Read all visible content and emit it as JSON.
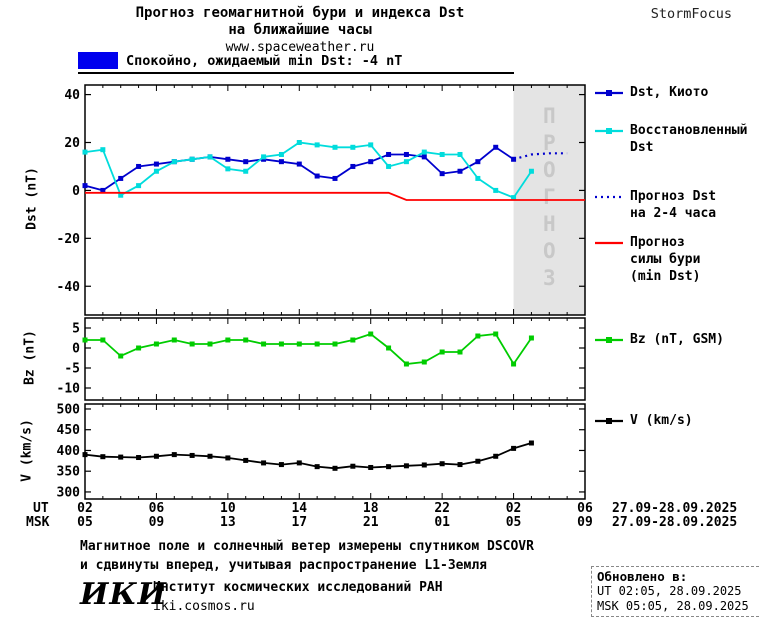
{
  "header": {
    "title_line1": "Прогноз геомагнитной бури и индекса Dst",
    "title_line2": "на ближайшие часы",
    "title_line3": "www.spaceweather.ru",
    "brand": "StormFocus"
  },
  "status_banner": {
    "label": "Спокойно, ожидаемый min Dst: -4 nT",
    "swatch_color": "#0000ee"
  },
  "chart_data": [
    {
      "type": "line",
      "ylabel": "Dst (nT)",
      "ylim": [
        -52,
        44
      ],
      "yticks": [
        40,
        20,
        0,
        -20,
        -40
      ],
      "xlim": [
        2,
        30
      ],
      "tick_hours": [
        2,
        6,
        10,
        14,
        18,
        22,
        26,
        30
      ],
      "forecast_band": {
        "from": 26,
        "to": 30,
        "label": "ПРОГНОЗ",
        "fill": "#e4e4e4",
        "label_color": "#c8c8c8"
      },
      "series": [
        {
          "name": "Dst, Киото",
          "color": "#0000cd",
          "marker": "square",
          "style": "solid",
          "x": [
            2,
            3,
            4,
            5,
            6,
            7,
            8,
            9,
            10,
            11,
            12,
            13,
            14,
            15,
            16,
            17,
            18,
            19,
            20,
            21,
            22,
            23,
            24,
            25,
            26
          ],
          "values": [
            2,
            0,
            5,
            10,
            11,
            12,
            13,
            14,
            13,
            12,
            13,
            12,
            11,
            6,
            5,
            10,
            12,
            15,
            15,
            14,
            7,
            8,
            12,
            18,
            13
          ]
        },
        {
          "name": "Восстановленный Dst",
          "color": "#00dcdc",
          "marker": "square",
          "style": "solid",
          "x": [
            2,
            3,
            4,
            5,
            6,
            7,
            8,
            9,
            10,
            11,
            12,
            13,
            14,
            15,
            16,
            17,
            18,
            19,
            20,
            21,
            22,
            23,
            24,
            25,
            26,
            27
          ],
          "values": [
            16,
            17,
            -2,
            2,
            8,
            12,
            13,
            14,
            9,
            8,
            14,
            15,
            20,
            19,
            18,
            18,
            19,
            10,
            12,
            16,
            15,
            15,
            5,
            0,
            -3,
            8
          ]
        },
        {
          "name": "Прогноз Dst на 2-4 часа",
          "color": "#0000cd",
          "marker": "none",
          "style": "dotted",
          "x": [
            26,
            27,
            28,
            29
          ],
          "values": [
            13,
            15,
            15.5,
            15.5
          ]
        },
        {
          "name": "Прогноз силы бури (min Dst)",
          "color": "#ff0000",
          "marker": "none",
          "style": "solid",
          "x": [
            2,
            19,
            20,
            30
          ],
          "values": [
            -1,
            -1,
            -4,
            -4
          ]
        }
      ]
    },
    {
      "type": "line",
      "ylabel": "Bz (nT)",
      "ylim": [
        -13,
        7.5
      ],
      "yticks": [
        5,
        0,
        -5,
        -10
      ],
      "xlim": [
        2,
        30
      ],
      "tick_hours": [
        2,
        6,
        10,
        14,
        18,
        22,
        26,
        30
      ],
      "series": [
        {
          "name": "Bz (nT, GSM)",
          "color": "#00cc00",
          "marker": "square",
          "style": "solid",
          "x": [
            2,
            3,
            4,
            5,
            6,
            7,
            8,
            9,
            10,
            11,
            12,
            13,
            14,
            15,
            16,
            17,
            18,
            19,
            20,
            21,
            22,
            23,
            24,
            25,
            26,
            27
          ],
          "values": [
            2,
            2,
            -2,
            0,
            1,
            2,
            1,
            1,
            2,
            2,
            1,
            1,
            1,
            1,
            1,
            2,
            3.5,
            0,
            -4,
            -3.5,
            -1,
            -1,
            3,
            3.5,
            -4,
            2.5
          ]
        }
      ]
    },
    {
      "type": "line",
      "ylabel": "V (km/s)",
      "ylim": [
        283,
        512
      ],
      "yticks": [
        500,
        450,
        400,
        350,
        300
      ],
      "xlim": [
        2,
        30
      ],
      "tick_hours": [
        2,
        6,
        10,
        14,
        18,
        22,
        26,
        30
      ],
      "series": [
        {
          "name": "V (km/s)",
          "color": "#000000",
          "marker": "square",
          "style": "solid",
          "x": [
            2,
            3,
            4,
            5,
            6,
            7,
            8,
            9,
            10,
            11,
            12,
            13,
            14,
            15,
            16,
            17,
            18,
            19,
            20,
            21,
            22,
            23,
            24,
            25,
            26,
            27
          ],
          "values": [
            390,
            385,
            384,
            383,
            386,
            390,
            388,
            386,
            382,
            376,
            370,
            366,
            370,
            361,
            357,
            362,
            359,
            361,
            363,
            365,
            368,
            366,
            374,
            386,
            405,
            418
          ]
        }
      ]
    }
  ],
  "axis": {
    "ut_label": "UT",
    "msk_label": "MSK",
    "tick_hours": [
      2,
      6,
      10,
      14,
      18,
      22,
      26,
      30
    ],
    "ut_ticks": [
      "02",
      "06",
      "10",
      "14",
      "18",
      "22",
      "02",
      "06"
    ],
    "msk_ticks": [
      "05",
      "09",
      "13",
      "17",
      "21",
      "01",
      "05",
      "09"
    ],
    "date_range": "27.09-28.09.2025"
  },
  "legend": {
    "items": [
      {
        "label": "Dst, Киото",
        "color": "#0000cd",
        "marker": "square",
        "style": "solid"
      },
      {
        "label": "Восстановленный\nDst",
        "color": "#00dcdc",
        "marker": "square",
        "style": "solid"
      },
      {
        "label": "Прогноз Dst\nна 2-4 часа",
        "color": "#0000cd",
        "marker": "none",
        "style": "dotted"
      },
      {
        "label": "Прогноз\nсилы бури\n(min Dst)",
        "color": "#ff0000",
        "marker": "none",
        "style": "solid"
      },
      {
        "label": "Bz (nT, GSM)",
        "color": "#00cc00",
        "marker": "square",
        "style": "solid"
      },
      {
        "label": "V (km/s)",
        "color": "#000000",
        "marker": "square",
        "style": "solid"
      }
    ]
  },
  "footer": {
    "note_line1": "Магнитное поле и солнечный ветер измерены спутником DSCOVR",
    "note_line2": "и сдвинуты вперед, учитывая распространение L1-Земля",
    "institute_logo": "ИКИ",
    "institute_name": "Институт космических исследований РАН",
    "institute_site": "iki.cosmos.ru",
    "updated": {
      "title": "Обновлено в:",
      "ut": "UT  02:05, 28.09.2025",
      "msk": "MSK 05:05, 28.09.2025"
    }
  }
}
